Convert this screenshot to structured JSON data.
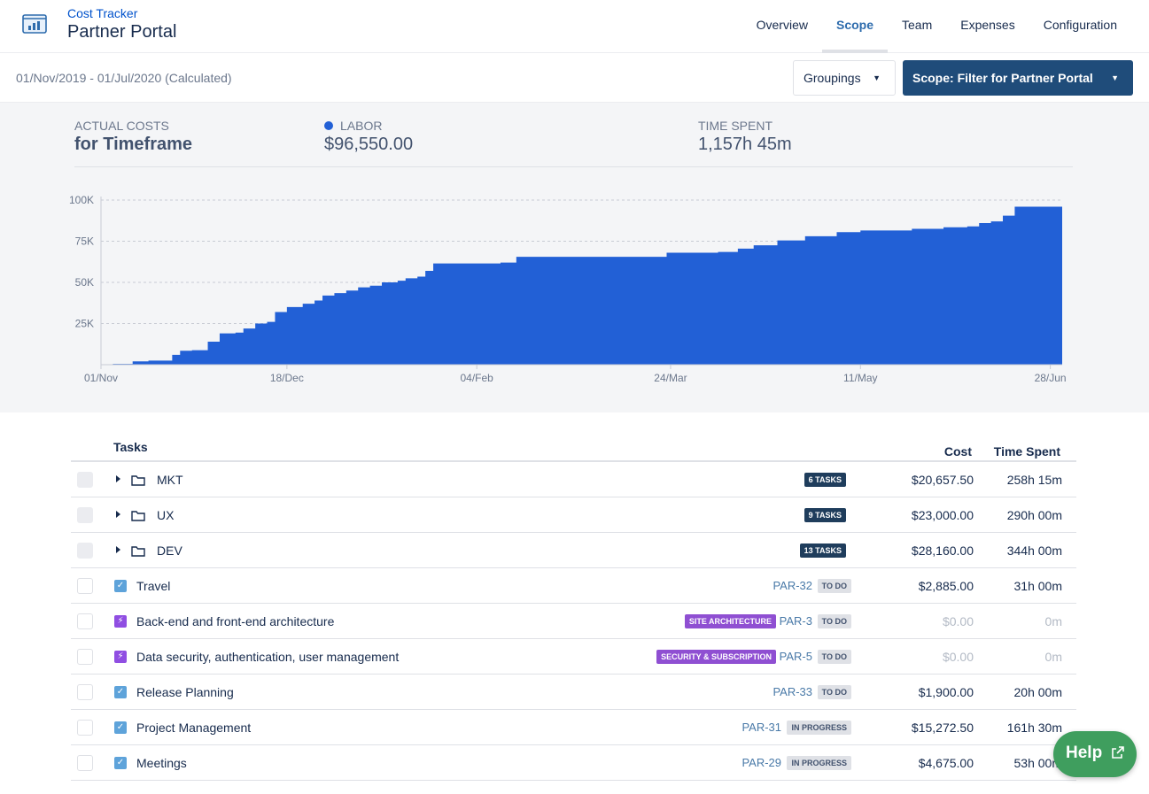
{
  "app": {
    "subtitle": "Cost Tracker",
    "title": "Partner Portal"
  },
  "nav": {
    "tabs": [
      "Overview",
      "Scope",
      "Team",
      "Expenses",
      "Configuration"
    ],
    "active": "Scope"
  },
  "filter": {
    "date_range": "01/Nov/2019 - 01/Jul/2020 (Calculated)",
    "groupings_label": "Groupings",
    "scope_label": "Scope: Filter for Partner Portal"
  },
  "summary": {
    "actual_costs_label": "ACTUAL COSTS",
    "actual_costs_value": "for Timeframe",
    "labor_label": "LABOR",
    "labor_value": "$96,550.00",
    "time_label": "TIME SPENT",
    "time_value": "1,157h 45m"
  },
  "chart_data": {
    "type": "area",
    "x_tick_labels": [
      "01/Nov",
      "18/Dec",
      "04/Feb",
      "24/Mar",
      "11/May",
      "28/Jun"
    ],
    "y_tick_labels": [
      "100K",
      "75K",
      "50K",
      "25K"
    ],
    "ylim": [
      0,
      100000
    ],
    "x_start": "2019-11-01",
    "x_end": "2020-07-01",
    "color": "#2260d6",
    "grid": true,
    "series": [
      {
        "name": "Labor",
        "points": [
          [
            "2019-11-01",
            0
          ],
          [
            "2019-11-04",
            500
          ],
          [
            "2019-11-09",
            2000
          ],
          [
            "2019-11-13",
            2500
          ],
          [
            "2019-11-19",
            6000
          ],
          [
            "2019-11-21",
            8500
          ],
          [
            "2019-11-24",
            8800
          ],
          [
            "2019-11-28",
            14000
          ],
          [
            "2019-12-01",
            19000
          ],
          [
            "2019-12-05",
            19500
          ],
          [
            "2019-12-07",
            22000
          ],
          [
            "2019-12-10",
            25000
          ],
          [
            "2019-12-13",
            26000
          ],
          [
            "2019-12-15",
            32000
          ],
          [
            "2019-12-18",
            35000
          ],
          [
            "2019-12-22",
            37000
          ],
          [
            "2019-12-25",
            39000
          ],
          [
            "2019-12-27",
            42000
          ],
          [
            "2019-12-30",
            43500
          ],
          [
            "2020-01-02",
            45000
          ],
          [
            "2020-01-05",
            47000
          ],
          [
            "2020-01-08",
            48000
          ],
          [
            "2020-01-11",
            50000
          ],
          [
            "2020-01-15",
            51000
          ],
          [
            "2020-01-17",
            52500
          ],
          [
            "2020-01-20",
            53500
          ],
          [
            "2020-01-22",
            57000
          ],
          [
            "2020-01-24",
            61500
          ],
          [
            "2020-02-04",
            61500
          ],
          [
            "2020-02-10",
            62000
          ],
          [
            "2020-02-14",
            65500
          ],
          [
            "2020-03-20",
            65500
          ],
          [
            "2020-03-23",
            68000
          ],
          [
            "2020-04-05",
            68500
          ],
          [
            "2020-04-10",
            70500
          ],
          [
            "2020-04-14",
            72500
          ],
          [
            "2020-04-20",
            75500
          ],
          [
            "2020-04-27",
            78000
          ],
          [
            "2020-05-05",
            80500
          ],
          [
            "2020-05-11",
            81500
          ],
          [
            "2020-05-24",
            82500
          ],
          [
            "2020-06-01",
            83500
          ],
          [
            "2020-06-07",
            84000
          ],
          [
            "2020-06-10",
            86000
          ],
          [
            "2020-06-13",
            87000
          ],
          [
            "2020-06-16",
            90500
          ],
          [
            "2020-06-19",
            96000
          ],
          [
            "2020-07-01",
            96550
          ]
        ]
      }
    ]
  },
  "table": {
    "headers": {
      "tasks": "Tasks",
      "cost": "Cost",
      "time": "Time Spent"
    },
    "groups": [
      {
        "name": "MKT",
        "badge": "6 TASKS",
        "cost": "$20,657.50",
        "time": "258h 15m"
      },
      {
        "name": "UX",
        "badge": "9 TASKS",
        "cost": "$23,000.00",
        "time": "290h 00m"
      },
      {
        "name": "DEV",
        "badge": "13 TASKS",
        "cost": "$28,160.00",
        "time": "344h 00m"
      }
    ],
    "tasks": [
      {
        "name": "Travel",
        "icon": "check-icon",
        "label": "",
        "key": "PAR-32",
        "status": "TO DO",
        "cost": "$2,885.00",
        "time": "31h 00m",
        "muted": false
      },
      {
        "name": "Back-end and front-end architecture",
        "icon": "epic-icon",
        "label": "SITE ARCHITECTURE",
        "key": "PAR-3",
        "status": "TO DO",
        "cost": "$0.00",
        "time": "0m",
        "muted": true
      },
      {
        "name": "Data security, authentication, user management",
        "icon": "epic-icon",
        "label": "SECURITY & SUBSCRIPTION",
        "key": "PAR-5",
        "status": "TO DO",
        "cost": "$0.00",
        "time": "0m",
        "muted": true
      },
      {
        "name": "Release Planning",
        "icon": "check-icon",
        "label": "",
        "key": "PAR-33",
        "status": "TO DO",
        "cost": "$1,900.00",
        "time": "20h 00m",
        "muted": false
      },
      {
        "name": "Project Management",
        "icon": "check-icon",
        "label": "",
        "key": "PAR-31",
        "status": "IN PROGRESS",
        "cost": "$15,272.50",
        "time": "161h 30m",
        "muted": false
      },
      {
        "name": "Meetings",
        "icon": "check-icon",
        "label": "",
        "key": "PAR-29",
        "status": "IN PROGRESS",
        "cost": "$4,675.00",
        "time": "53h 00m",
        "muted": false
      }
    ]
  },
  "help": {
    "label": "Help"
  }
}
